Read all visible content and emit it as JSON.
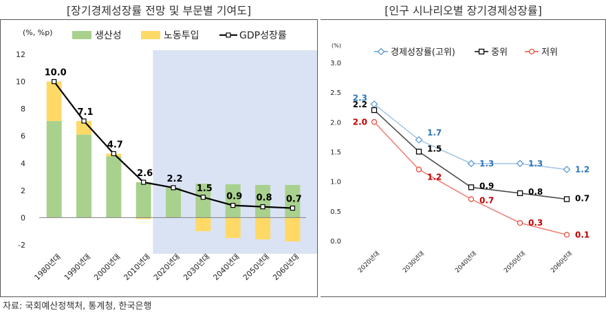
{
  "source": "자료: 국회예산정책처, 통계청, 한국은행",
  "chart_data": [
    {
      "type": "bar",
      "title": "[장기경제성장률 전망 및 부문별 기여도]",
      "unit_label": "(%, %p)",
      "categories": [
        "1980년대",
        "1990년대",
        "2000년대",
        "2010년대",
        "2020년대",
        "2030년대",
        "2040년대",
        "2050년대",
        "2060년대"
      ],
      "ylim": [
        -2,
        12
      ],
      "yticks": [
        "12",
        "10",
        "8",
        "6",
        "4",
        "2",
        "0",
        "-2"
      ],
      "series": [
        {
          "name": "생산성",
          "kind": "bar",
          "color": "#a9d18e",
          "values": [
            7.1,
            6.1,
            4.5,
            2.6,
            2.2,
            2.5,
            2.45,
            2.4,
            2.4
          ]
        },
        {
          "name": "노동투입",
          "kind": "bar",
          "color": "#ffd966",
          "values": [
            2.9,
            1.0,
            0.2,
            -0.1,
            0.0,
            -1.0,
            -1.5,
            -1.6,
            -1.75
          ]
        },
        {
          "name": "GDP성장률",
          "kind": "line",
          "color": "#000000",
          "values": [
            10.0,
            7.1,
            4.7,
            2.6,
            2.2,
            1.5,
            0.9,
            0.8,
            0.7
          ],
          "labels": [
            "10.0",
            "7.1",
            "4.7",
            "2.6",
            "2.2",
            "1.5",
            "0.9",
            "0.8",
            "0.7"
          ]
        }
      ],
      "shaded_range": [
        "2020년대",
        "2060년대"
      ],
      "legend_position": "top"
    },
    {
      "type": "line",
      "title": "[인구 시나리오별 장기경제성장률]",
      "unit_label": "(%)",
      "categories": [
        "2020년대",
        "2030년대",
        "2040년대",
        "2050년대",
        "2060년대"
      ],
      "ylim": [
        0,
        3.0
      ],
      "yticks": [
        "3.0",
        "2.5",
        "2.0",
        "1.5",
        "1.0",
        "0.5",
        "0.0"
      ],
      "series": [
        {
          "name": "경제성장률(고위)",
          "color": "#5b9bd5",
          "marker": "diamond",
          "values": [
            2.3,
            1.7,
            1.3,
            1.3,
            1.2
          ],
          "labels": [
            "2.3",
            "1.7",
            "1.3",
            "1.3",
            "1.2"
          ]
        },
        {
          "name": "중위",
          "color": "#000000",
          "marker": "square",
          "values": [
            2.2,
            1.5,
            0.9,
            0.8,
            0.7
          ],
          "labels": [
            "2.2",
            "1.5",
            "0.9",
            "0.8",
            "0.7"
          ]
        },
        {
          "name": "저위",
          "color": "#e84c3d",
          "marker": "circle",
          "values": [
            2.0,
            1.2,
            0.7,
            0.3,
            0.1
          ],
          "labels": [
            "2.0",
            "1.2",
            "0.7",
            "0.3",
            "0.1"
          ]
        }
      ],
      "legend_position": "top"
    }
  ]
}
